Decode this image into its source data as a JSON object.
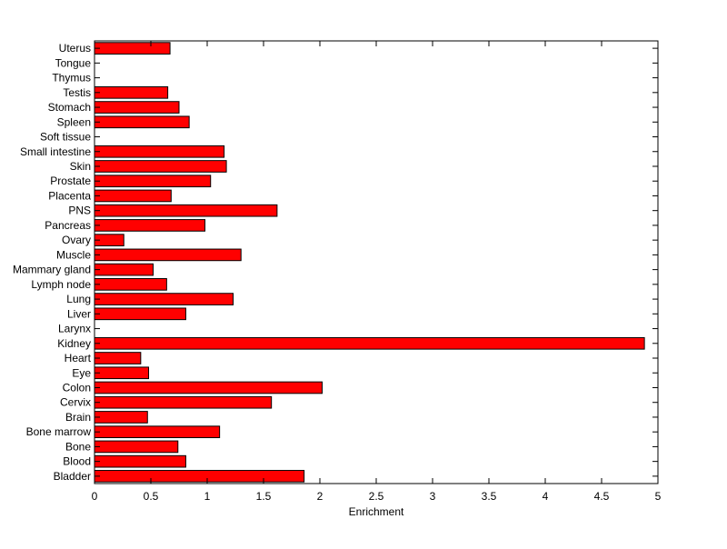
{
  "chart_data": {
    "type": "bar",
    "orientation": "horizontal",
    "title": "",
    "xlabel": "Enrichment",
    "ylabel": "",
    "xlim": [
      0,
      5
    ],
    "xticks": [
      0,
      0.5,
      1,
      1.5,
      2,
      2.5,
      3,
      3.5,
      4,
      4.5,
      5
    ],
    "xtick_labels": [
      "0",
      "0.5",
      "1",
      "1.5",
      "2",
      "2.5",
      "3",
      "3.5",
      "4",
      "4.5",
      "5"
    ],
    "grid": false,
    "legend": "none",
    "bar_color": "#ff0000",
    "bar_edge_color": "#000000",
    "categories": [
      "Bladder",
      "Blood",
      "Bone",
      "Bone marrow",
      "Brain",
      "Cervix",
      "Colon",
      "Eye",
      "Heart",
      "Kidney",
      "Larynx",
      "Liver",
      "Lung",
      "Lymph node",
      "Mammary gland",
      "Muscle",
      "Ovary",
      "Pancreas",
      "PNS",
      "Placenta",
      "Prostate",
      "Skin",
      "Small intestine",
      "Soft tissue",
      "Spleen",
      "Stomach",
      "Testis",
      "Thymus",
      "Tongue",
      "Uterus"
    ],
    "values": [
      1.86,
      0.81,
      0.74,
      1.11,
      0.47,
      1.57,
      2.02,
      0.48,
      0.41,
      4.88,
      0,
      0.81,
      1.23,
      0.64,
      0.52,
      1.3,
      0.26,
      0.98,
      1.62,
      0.68,
      1.03,
      1.17,
      1.15,
      0,
      0.84,
      0.75,
      0.65,
      0,
      0,
      0.67
    ]
  }
}
